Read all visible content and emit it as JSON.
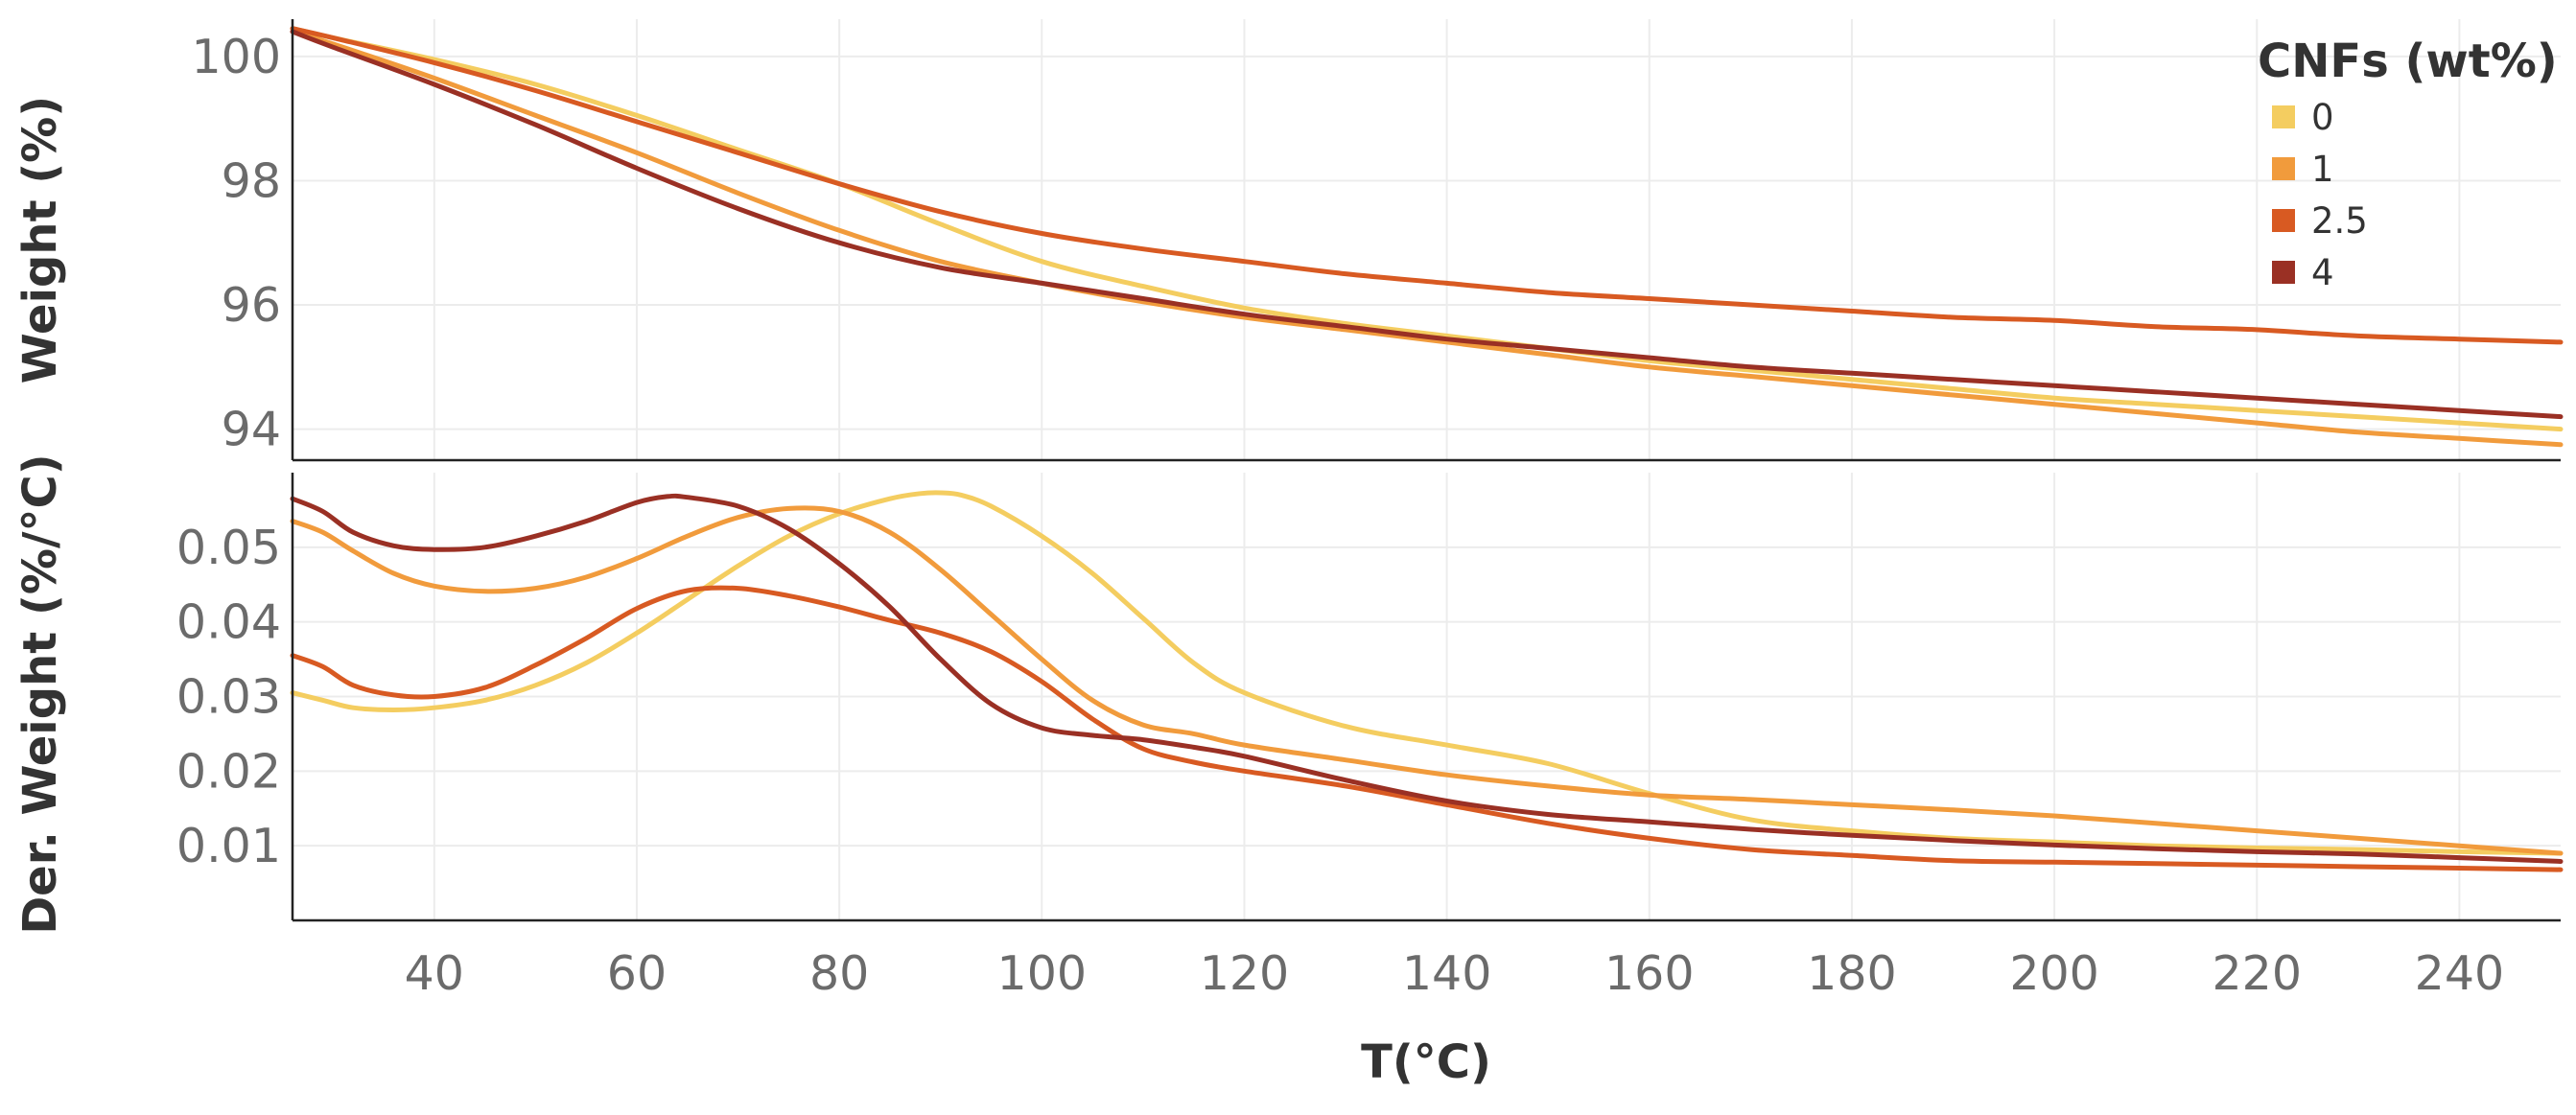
{
  "chart_data": {
    "type": "line",
    "legend": {
      "title": "CNFs (wt%)",
      "position": "top-right",
      "entries": [
        "0",
        "1",
        "2.5",
        "4"
      ]
    },
    "colors": {
      "0": "#f4cd60",
      "1": "#f19b3c",
      "2.5": "#d85a22",
      "4": "#9a3024"
    },
    "xlabel": "T(°C)",
    "xlim": [
      26,
      250
    ],
    "xticks": [
      "40",
      "60",
      "80",
      "100",
      "120",
      "140",
      "160",
      "180",
      "200",
      "220",
      "240"
    ],
    "panels": [
      {
        "ylabel": "Weight  (%)",
        "ylim": [
          93.5,
          100.6
        ],
        "yticks": [
          "94",
          "96",
          "98",
          "100"
        ],
        "series": [
          {
            "name": "0",
            "x": [
              26,
              30,
              40,
              50,
              60,
              70,
              80,
              90,
              100,
              110,
              120,
              130,
              140,
              150,
              160,
              170,
              180,
              190,
              200,
              210,
              220,
              230,
              240,
              250
            ],
            "y": [
              100.45,
              100.3,
              99.95,
              99.55,
              99.05,
              98.5,
              97.95,
              97.3,
              96.7,
              96.3,
              95.95,
              95.7,
              95.5,
              95.3,
              95.1,
              94.95,
              94.8,
              94.65,
              94.5,
              94.4,
              94.3,
              94.2,
              94.1,
              94.0
            ]
          },
          {
            "name": "1",
            "x": [
              26,
              30,
              40,
              50,
              60,
              70,
              80,
              90,
              100,
              110,
              120,
              130,
              140,
              150,
              160,
              170,
              180,
              190,
              200,
              210,
              220,
              230,
              240,
              250
            ],
            "y": [
              100.4,
              100.2,
              99.65,
              99.05,
              98.45,
              97.8,
              97.2,
              96.7,
              96.35,
              96.05,
              95.8,
              95.6,
              95.4,
              95.2,
              95.0,
              94.85,
              94.7,
              94.55,
              94.4,
              94.25,
              94.1,
              93.95,
              93.85,
              93.75
            ]
          },
          {
            "name": "2.5",
            "x": [
              26,
              30,
              40,
              50,
              60,
              70,
              80,
              90,
              100,
              110,
              120,
              130,
              140,
              150,
              160,
              170,
              180,
              190,
              200,
              210,
              220,
              230,
              240,
              250
            ],
            "y": [
              100.45,
              100.3,
              99.9,
              99.45,
              98.95,
              98.45,
              97.95,
              97.5,
              97.15,
              96.9,
              96.7,
              96.5,
              96.35,
              96.2,
              96.1,
              96.0,
              95.9,
              95.8,
              95.75,
              95.65,
              95.6,
              95.5,
              95.45,
              95.4
            ]
          },
          {
            "name": "4",
            "x": [
              26,
              30,
              40,
              50,
              60,
              70,
              80,
              90,
              100,
              110,
              120,
              130,
              140,
              150,
              160,
              170,
              180,
              190,
              200,
              210,
              220,
              230,
              240,
              250
            ],
            "y": [
              100.4,
              100.15,
              99.55,
              98.9,
              98.2,
              97.55,
              97.0,
              96.6,
              96.35,
              96.1,
              95.85,
              95.65,
              95.45,
              95.3,
              95.15,
              95.0,
              94.9,
              94.8,
              94.7,
              94.6,
              94.5,
              94.4,
              94.3,
              94.2
            ]
          }
        ]
      },
      {
        "ylabel": "Der. Weight (%/°C)",
        "ylim": [
          0,
          0.06
        ],
        "yticks": [
          "0.01",
          "0.02",
          "0.03",
          "0.04",
          "0.05"
        ],
        "series": [
          {
            "name": "0",
            "x": [
              26,
              29,
              32,
              36,
              40,
              45,
              50,
              55,
              60,
              65,
              70,
              75,
              80,
              85,
              88,
              90,
              92,
              95,
              100,
              105,
              110,
              115,
              120,
              130,
              140,
              150,
              160,
              170,
              180,
              190,
              200,
              210,
              220,
              230,
              240,
              250
            ],
            "y": [
              0.0305,
              0.0295,
              0.0285,
              0.0282,
              0.0285,
              0.0295,
              0.0315,
              0.0345,
              0.0385,
              0.043,
              0.0475,
              0.0515,
              0.0545,
              0.0565,
              0.0572,
              0.0573,
              0.057,
              0.0555,
              0.0515,
              0.0465,
              0.0405,
              0.0345,
              0.0305,
              0.026,
              0.0235,
              0.021,
              0.017,
              0.0135,
              0.012,
              0.011,
              0.0105,
              0.01,
              0.0097,
              0.0095,
              0.0092,
              0.009
            ]
          },
          {
            "name": "1",
            "x": [
              26,
              29,
              32,
              36,
              40,
              45,
              50,
              55,
              60,
              65,
              70,
              75,
              80,
              85,
              90,
              95,
              100,
              105,
              110,
              115,
              120,
              130,
              140,
              150,
              160,
              170,
              180,
              190,
              200,
              210,
              220,
              230,
              240,
              250
            ],
            "y": [
              0.0535,
              0.052,
              0.0495,
              0.0465,
              0.0448,
              0.0441,
              0.0445,
              0.046,
              0.0485,
              0.0515,
              0.054,
              0.0552,
              0.0548,
              0.052,
              0.047,
              0.041,
              0.035,
              0.0295,
              0.0262,
              0.025,
              0.0235,
              0.0215,
              0.0195,
              0.018,
              0.0168,
              0.0162,
              0.0155,
              0.0148,
              0.014,
              0.013,
              0.012,
              0.011,
              0.01,
              0.009
            ]
          },
          {
            "name": "2.5",
            "x": [
              26,
              29,
              32,
              36,
              40,
              45,
              50,
              55,
              60,
              65,
              70,
              75,
              80,
              85,
              90,
              95,
              100,
              105,
              110,
              115,
              120,
              130,
              140,
              150,
              160,
              170,
              180,
              190,
              200,
              210,
              220,
              230,
              240,
              250
            ],
            "y": [
              0.0355,
              0.034,
              0.0315,
              0.0302,
              0.03,
              0.0312,
              0.0342,
              0.0378,
              0.0418,
              0.0442,
              0.0445,
              0.0435,
              0.042,
              0.0402,
              0.0385,
              0.036,
              0.032,
              0.027,
              0.023,
              0.0212,
              0.02,
              0.018,
              0.0155,
              0.013,
              0.011,
              0.0095,
              0.0087,
              0.008,
              0.0078,
              0.0076,
              0.0074,
              0.0072,
              0.007,
              0.0068
            ]
          },
          {
            "name": "4",
            "x": [
              26,
              29,
              32,
              36,
              40,
              45,
              50,
              55,
              60,
              63,
              65,
              70,
              75,
              80,
              85,
              90,
              95,
              100,
              105,
              110,
              115,
              120,
              130,
              140,
              150,
              160,
              170,
              180,
              190,
              200,
              210,
              220,
              230,
              240,
              250
            ],
            "y": [
              0.0565,
              0.0548,
              0.052,
              0.0502,
              0.0497,
              0.05,
              0.0515,
              0.0535,
              0.056,
              0.0568,
              0.0567,
              0.0555,
              0.0525,
              0.0478,
              0.042,
              0.035,
              0.029,
              0.0258,
              0.0248,
              0.0242,
              0.0232,
              0.022,
              0.0188,
              0.016,
              0.0142,
              0.0132,
              0.0122,
              0.0114,
              0.0107,
              0.0101,
              0.0096,
              0.0092,
              0.0089,
              0.0084,
              0.0079
            ]
          }
        ]
      }
    ]
  }
}
